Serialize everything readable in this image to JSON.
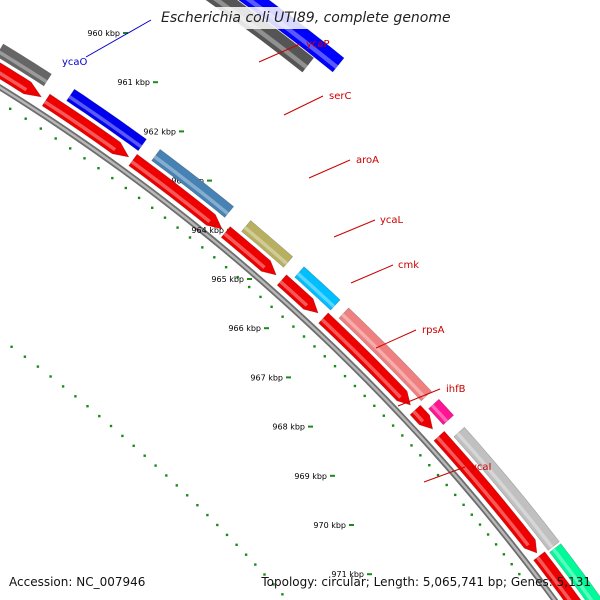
{
  "title": "Escherichia coli UTI89, complete genome",
  "footer": {
    "accession": "Accession: NC_007946",
    "topology": "Topology: circular; Length: 5,065,741 bp; Genes: 5,131"
  },
  "colors": {
    "backbone": "#8a8a8a",
    "tick": "#1a8a1a",
    "label_line_fwd": "#cc0000",
    "label_line_rev": "#0000cc",
    "label_fwd": "#cc0000",
    "label_rev": "#0000cc"
  },
  "ruler": [
    {
      "label": "960 kbp"
    },
    {
      "label": "961 kbp"
    },
    {
      "label": "962 kbp"
    },
    {
      "label": "963 kbp"
    },
    {
      "label": "964 kbp"
    },
    {
      "label": "965 kbp"
    },
    {
      "label": "966 kbp"
    },
    {
      "label": "967 kbp"
    },
    {
      "label": "968 kbp"
    },
    {
      "label": "969 kbp"
    },
    {
      "label": "970 kbp"
    },
    {
      "label": "971 kbp"
    }
  ],
  "genes": [
    {
      "name": "ycaO",
      "strand": "reverse",
      "color": "#0000ff"
    },
    {
      "name": "ycaP",
      "strand": "forward",
      "color": "#666666"
    },
    {
      "name": "serC",
      "strand": "forward",
      "color": "#0000ee"
    },
    {
      "name": "aroA",
      "strand": "forward",
      "color": "#4682b4"
    },
    {
      "name": "ycaL",
      "strand": "forward",
      "color": "#b8b060"
    },
    {
      "name": "cmk",
      "strand": "forward",
      "color": "#00bfff"
    },
    {
      "name": "rpsA",
      "strand": "forward",
      "color": "#f08080"
    },
    {
      "name": "ihfB",
      "strand": "forward",
      "color": "#ff1493"
    },
    {
      "name": "ycaI",
      "strand": "forward",
      "color": "#c0c0c0"
    },
    {
      "name": "",
      "strand": "forward",
      "color": "#00fa9a"
    }
  ]
}
